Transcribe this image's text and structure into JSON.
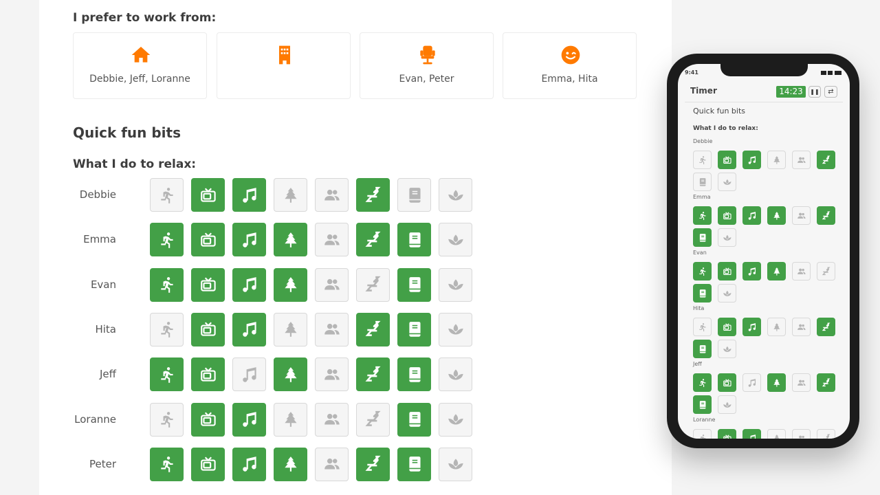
{
  "work": {
    "title": "I prefer to work from:",
    "options": [
      {
        "icon": "home-icon",
        "people": "Debbie, Jeff, Loranne"
      },
      {
        "icon": "office-building-icon",
        "people": ""
      },
      {
        "icon": "seat-icon",
        "people": "Evan, Peter"
      },
      {
        "icon": "wink-face-icon",
        "people": "Emma, Hita"
      }
    ]
  },
  "fun": {
    "title": "Quick fun bits",
    "relax_title": "What I do to relax:",
    "activities": [
      "running-icon",
      "tv-icon",
      "music-icon",
      "tree-icon",
      "people-icon",
      "sleep-icon",
      "book-icon",
      "lotus-icon"
    ],
    "people": [
      {
        "name": "Debbie",
        "active": [
          0,
          1,
          1,
          0,
          0,
          1,
          0,
          0
        ]
      },
      {
        "name": "Emma",
        "active": [
          1,
          1,
          1,
          1,
          0,
          1,
          1,
          0
        ]
      },
      {
        "name": "Evan",
        "active": [
          1,
          1,
          1,
          1,
          0,
          0,
          1,
          0
        ]
      },
      {
        "name": "Hita",
        "active": [
          0,
          1,
          1,
          0,
          0,
          1,
          1,
          0
        ]
      },
      {
        "name": "Jeff",
        "active": [
          1,
          1,
          0,
          1,
          0,
          1,
          1,
          0
        ]
      },
      {
        "name": "Loranne",
        "active": [
          0,
          1,
          1,
          0,
          0,
          0,
          1,
          0
        ]
      },
      {
        "name": "Peter",
        "active": [
          1,
          1,
          1,
          1,
          0,
          1,
          1,
          0
        ]
      }
    ]
  },
  "phone": {
    "time": "9:41",
    "header": "Timer",
    "timer": "14:23",
    "pause_icon": "pause-icon",
    "reset_icon": "repeat-icon"
  },
  "colors": {
    "accent_orange": "#ff7a00",
    "active_green": "#43a047",
    "inactive_icon": "#b5b5b5"
  }
}
